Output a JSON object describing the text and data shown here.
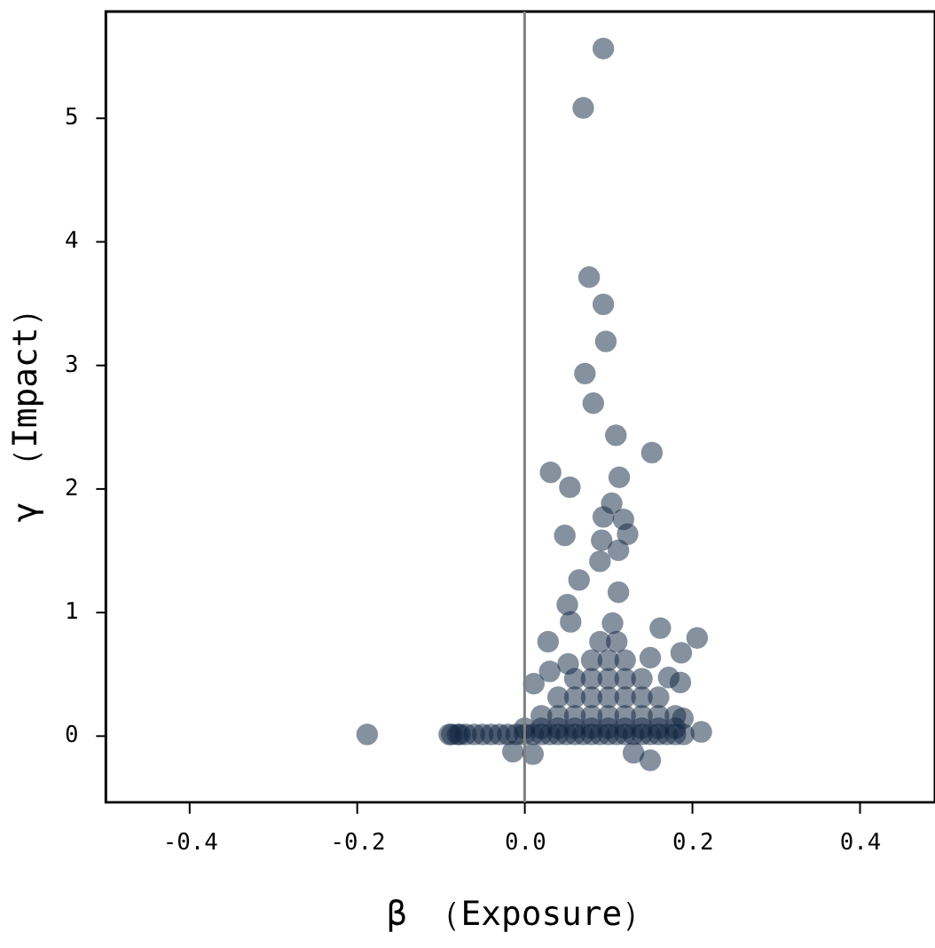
{
  "chart_data": {
    "type": "scatter",
    "xlabel": "β （Exposure）",
    "ylabel": "γ （Impact）",
    "xlim": [
      -0.5,
      0.49
    ],
    "ylim": [
      -0.55,
      5.85
    ],
    "xticks": [
      -0.4,
      -0.2,
      {
        "value": 0,
        "label": "0.0"
      },
      0.2,
      0.4
    ],
    "yticks": [
      0,
      1,
      2,
      3,
      4,
      5
    ],
    "grid": false,
    "marker": "circle",
    "ref_lines": [
      {
        "axis": "x",
        "value": 0,
        "color": "#808080"
      }
    ],
    "series": [
      {
        "color": "#0d2340",
        "x": [
          0.094,
          0.07,
          0.077,
          0.094,
          0.097,
          0.072,
          0.082,
          0.109,
          0.152,
          0.031,
          0.054,
          0.113,
          0.048,
          0.104,
          0.094,
          0.118,
          0.123,
          0.092,
          0.112,
          0.09,
          0.065,
          0.112,
          0.051,
          0.055,
          0.162,
          0.206,
          0.187,
          0.028,
          0.15,
          0.011,
          0.186,
          0.172,
          0.052,
          0.03,
          0.211,
          0.189,
          -0.188,
          -0.087,
          -0.077,
          0.15,
          -0.014,
          0.01,
          0.13,
          -0.09,
          -0.08,
          -0.07,
          -0.06,
          -0.05,
          -0.04,
          -0.03,
          -0.02,
          -0.01,
          0.0,
          0.01,
          0.02,
          0.03,
          0.04,
          0.05,
          0.06,
          0.07,
          0.08,
          0.09,
          0.1,
          0.11,
          0.12,
          0.13,
          0.14,
          0.15,
          0.16,
          0.17,
          0.18,
          0.19,
          0.0,
          0.02,
          0.04,
          0.06,
          0.08,
          0.1,
          0.12,
          0.14,
          0.16,
          0.18,
          0.02,
          0.04,
          0.06,
          0.08,
          0.1,
          0.12,
          0.14,
          0.16,
          0.18,
          0.04,
          0.06,
          0.08,
          0.1,
          0.12,
          0.14,
          0.16,
          0.06,
          0.08,
          0.1,
          0.12,
          0.14,
          0.08,
          0.1,
          0.12,
          0.09,
          0.11,
          0.105
        ],
        "values": [
          5.55,
          5.07,
          3.7,
          3.48,
          3.18,
          2.92,
          2.68,
          2.42,
          2.28,
          2.12,
          2.0,
          2.08,
          1.61,
          1.87,
          1.76,
          1.74,
          1.62,
          1.57,
          1.49,
          1.4,
          1.25,
          1.15,
          1.05,
          0.91,
          0.86,
          0.78,
          0.66,
          0.75,
          0.62,
          0.41,
          0.42,
          0.46,
          0.57,
          0.51,
          0.02,
          0.13,
          0.0,
          0.0,
          0.0,
          -0.21,
          -0.14,
          -0.16,
          -0.15,
          0,
          0,
          0,
          0,
          0,
          0,
          0,
          0,
          0,
          0,
          0,
          0,
          0,
          0,
          0,
          0,
          0,
          0,
          0,
          0,
          0,
          0,
          0,
          0,
          0,
          0,
          0,
          0,
          0,
          0.05,
          0.05,
          0.05,
          0.05,
          0.05,
          0.05,
          0.05,
          0.05,
          0.05,
          0.05,
          0.15,
          0.15,
          0.15,
          0.15,
          0.15,
          0.15,
          0.15,
          0.15,
          0.15,
          0.3,
          0.3,
          0.3,
          0.3,
          0.3,
          0.3,
          0.3,
          0.45,
          0.45,
          0.45,
          0.45,
          0.45,
          0.6,
          0.6,
          0.6,
          0.75,
          0.75,
          0.9
        ]
      }
    ]
  }
}
